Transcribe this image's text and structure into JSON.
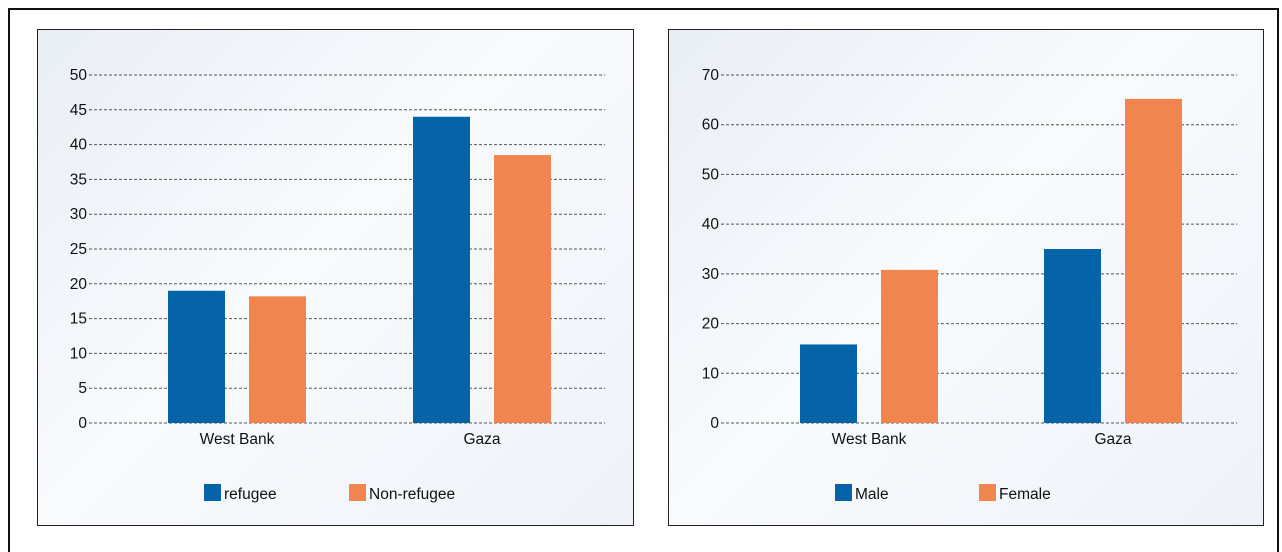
{
  "colors": {
    "series1": "#0564a8",
    "series2": "#f08550"
  },
  "chart_data": [
    {
      "type": "bar",
      "title": "",
      "xlabel": "",
      "ylabel": "",
      "categories": [
        "West Bank",
        "Gaza"
      ],
      "yticks": [
        "0",
        "5",
        "10",
        "15",
        "20",
        "25",
        "30",
        "35",
        "40",
        "45",
        "50"
      ],
      "ylim": [
        0,
        50
      ],
      "grid": true,
      "legend_position": "bottom",
      "series": [
        {
          "name": "refugee",
          "color": "#0564a8",
          "values": [
            19,
            44
          ]
        },
        {
          "name": "Non-refugee",
          "color": "#f08550",
          "values": [
            18.2,
            38.5
          ]
        }
      ]
    },
    {
      "type": "bar",
      "title": "",
      "xlabel": "",
      "ylabel": "",
      "categories": [
        "West Bank",
        "Gaza"
      ],
      "yticks": [
        "0",
        "10",
        "20",
        "30",
        "40",
        "50",
        "60",
        "70"
      ],
      "ylim": [
        0,
        70
      ],
      "grid": true,
      "legend_position": "bottom",
      "series": [
        {
          "name": "Male",
          "color": "#0564a8",
          "values": [
            15.8,
            35
          ]
        },
        {
          "name": "Female",
          "color": "#f08550",
          "values": [
            30.8,
            65.2
          ]
        }
      ]
    }
  ]
}
